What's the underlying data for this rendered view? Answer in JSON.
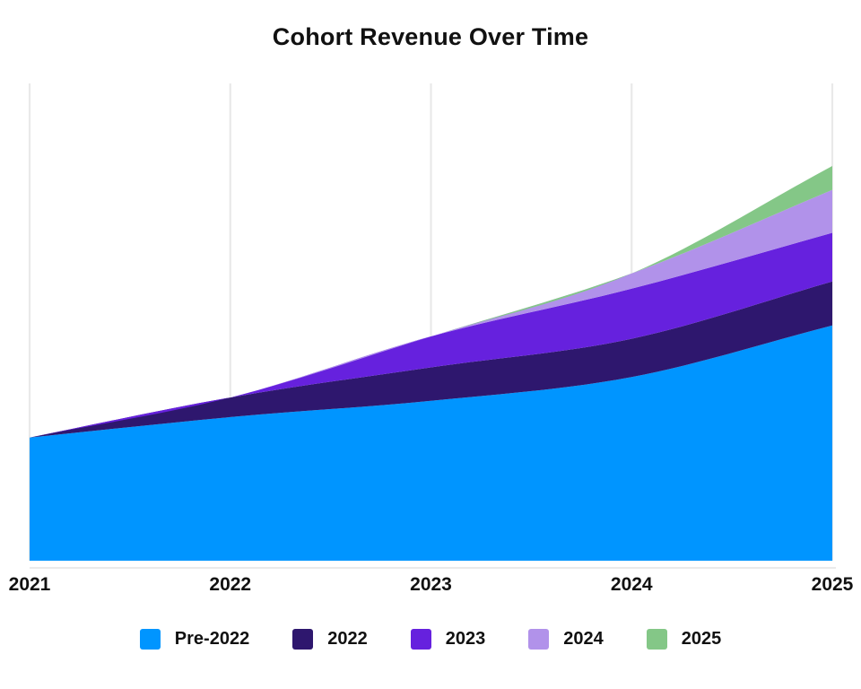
{
  "title": "Cohort Revenue Over Time",
  "chart_data": {
    "type": "area",
    "stacked": true,
    "title": "Cohort Revenue Over Time",
    "categories": [
      "2021",
      "2022",
      "2023",
      "2024",
      "2025"
    ],
    "series": [
      {
        "name": "Pre-2022",
        "color": "#0095FF",
        "values": [
          25.8,
          30.1,
          33.5,
          38.5,
          49.3
        ]
      },
      {
        "name": "2022",
        "color": "#2E176E",
        "values": [
          0,
          4.1,
          7.0,
          8.0,
          9.2
        ]
      },
      {
        "name": "2023",
        "color": "#6621DE",
        "values": [
          0,
          0,
          6.5,
          10.5,
          10.2
        ]
      },
      {
        "name": "2024",
        "color": "#B192EA",
        "values": [
          0,
          0,
          0,
          3.2,
          9.0
        ]
      },
      {
        "name": "2025",
        "color": "#84C787",
        "values": [
          0,
          0,
          0,
          0,
          5.0
        ]
      }
    ],
    "xlabel": "",
    "ylabel": "",
    "ylim": [
      0,
      100
    ],
    "y_axis_visible": false,
    "grid": "vertical",
    "gridline_color": "#E9E9E9",
    "axis_line_color": "#E3E3E3",
    "curve": "monotone",
    "legend_position": "bottom",
    "text_color": "#111111",
    "background": "#FFFFFF"
  }
}
